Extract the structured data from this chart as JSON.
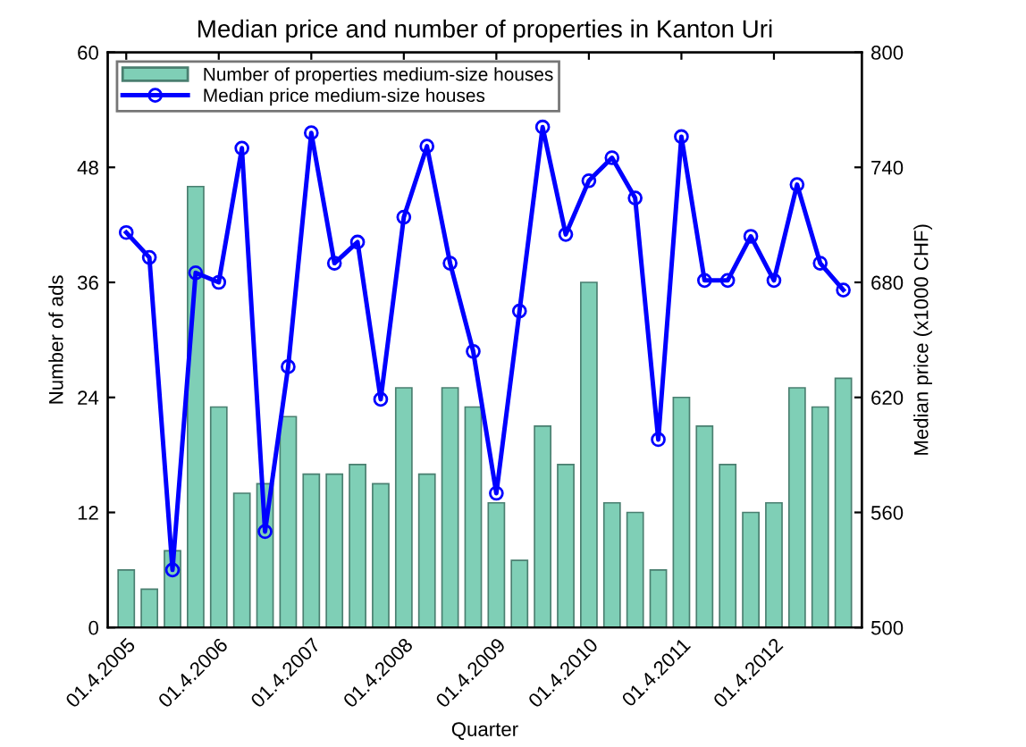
{
  "chart_data": {
    "type": "bar",
    "title": "Median price and number of properties in Kanton Uri",
    "xlabel": "Quarter",
    "ylabel": "Number of ads",
    "y2label": "Median price (x1000 CHF)",
    "categories": [
      "01.4.2005",
      null,
      null,
      null,
      "01.4.2006",
      null,
      null,
      null,
      "01.4.2007",
      null,
      null,
      null,
      "01.4.2008",
      null,
      null,
      null,
      "01.4.2009",
      null,
      null,
      null,
      "01.4.2010",
      null,
      null,
      null,
      "01.4.2011",
      null,
      null,
      null,
      "01.4.2012",
      null,
      null,
      null
    ],
    "series": [
      {
        "name": "Number of properties medium-size houses",
        "color": "#7fcfb6",
        "values": [
          6,
          4,
          8,
          46,
          23,
          14,
          15,
          22,
          16,
          16,
          17,
          15,
          25,
          16,
          25,
          23,
          13,
          7,
          21,
          17,
          36,
          13,
          12,
          6,
          24,
          21,
          17,
          12,
          13,
          25,
          23,
          26
        ]
      },
      {
        "name": "Median price medium-size houses",
        "type": "line",
        "axis": "y2",
        "color": "#0000ff",
        "marker": "circle",
        "values": [
          706,
          693,
          530,
          685,
          680,
          750,
          550,
          636,
          758,
          690,
          701,
          619,
          714,
          751,
          690,
          644,
          570,
          665,
          761,
          705,
          733,
          745,
          724,
          598,
          756,
          681,
          681,
          704,
          681,
          731,
          690,
          676
        ]
      }
    ],
    "ylim": [
      0,
      60
    ],
    "yticks": [
      0,
      12,
      24,
      36,
      48,
      60
    ],
    "y2lim": [
      500,
      800
    ],
    "y2ticks": [
      500,
      560,
      620,
      680,
      740,
      800
    ],
    "legend": "top left",
    "grid": false
  }
}
